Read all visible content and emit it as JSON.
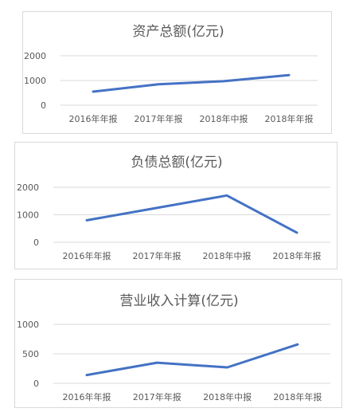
{
  "chart_data": [
    {
      "type": "line",
      "title": "资产总额(亿元)",
      "categories": [
        "2016年年报",
        "2017年年报",
        "2018年中报",
        "2018年年报"
      ],
      "yticks": [
        0,
        1000,
        2000
      ],
      "ylim": [
        0,
        2000
      ],
      "grid": true,
      "series": [
        {
          "values": [
            550,
            850,
            970,
            1220
          ]
        }
      ]
    },
    {
      "type": "line",
      "title": "负债总额(亿元)",
      "categories": [
        "2016年年报",
        "2017年年报",
        "2018年中报",
        "2018年年报"
      ],
      "yticks": [
        0,
        1000,
        2000
      ],
      "ylim": [
        0,
        2000
      ],
      "grid": true,
      "series": [
        {
          "values": [
            800,
            1250,
            1700,
            350
          ]
        }
      ]
    },
    {
      "type": "line",
      "title": "营业收入计算(亿元)",
      "categories": [
        "2016年年报",
        "2017年年报",
        "2018年中报",
        "2018年年报"
      ],
      "yticks": [
        0,
        500,
        1000
      ],
      "ylim": [
        0,
        1000
      ],
      "grid": true,
      "series": [
        {
          "values": [
            140,
            350,
            270,
            660
          ]
        }
      ]
    }
  ],
  "colors": {
    "series": "#4472c4",
    "grid": "#d9d9d9",
    "text": "#595959"
  }
}
